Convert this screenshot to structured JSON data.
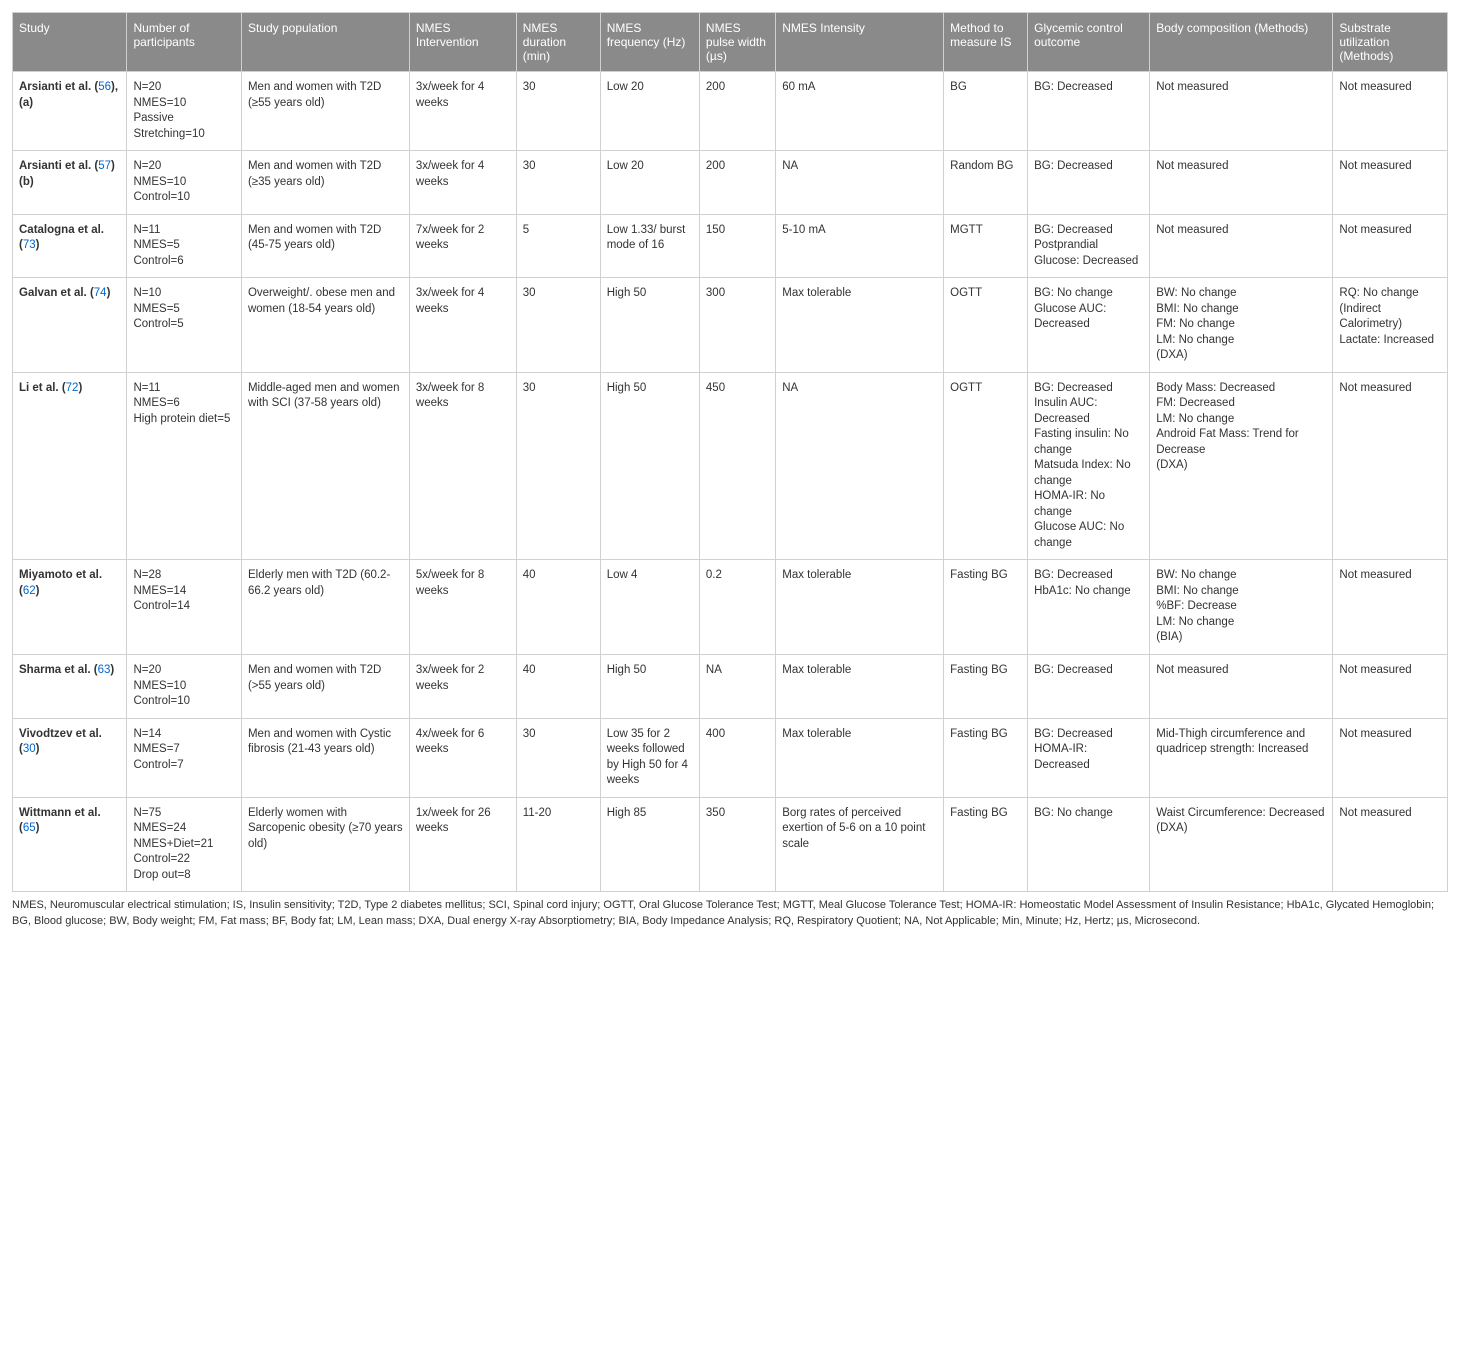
{
  "columns": [
    "Study",
    "Number of participants",
    "Study population",
    "NMES Intervention",
    "NMES duration (min)",
    "NMES frequency (Hz)",
    "NMES pulse width (µs)",
    "NMES Intensity",
    "Method to measure IS",
    "Glycemic control outcome",
    "Body composition (Methods)",
    "Substrate utilization (Methods)"
  ],
  "col_widths_pct": [
    7.5,
    7.5,
    11,
    7,
    5.5,
    6.5,
    5,
    11,
    5.5,
    8,
    12,
    7.5
  ],
  "header_bg": "#8a8a8a",
  "header_fg": "#ffffff",
  "border_color": "#d0d0d0",
  "ref_color": "#0066cc",
  "rows": [
    {
      "study_pre": "Arsianti et al. (",
      "study_ref": "56",
      "study_post": "), (a)",
      "participants": "N=20\nNMES=10\nPassive Stretching=10",
      "population": "Men and women with T2D (≥55 years old)",
      "intervention": "3x/week for 4 weeks",
      "duration": "30",
      "frequency": "Low 20",
      "pulse_width": "200",
      "intensity": "60 mA",
      "method_is": "BG",
      "glycemic": "BG: Decreased",
      "body_comp": "Not measured",
      "substrate": "Not measured"
    },
    {
      "study_pre": "Arsianti et al. (",
      "study_ref": "57",
      "study_post": ") (b)",
      "participants": "N=20\nNMES=10\nControl=10",
      "population": "Men and women with T2D (≥35 years old)",
      "intervention": "3x/week for 4 weeks",
      "duration": "30",
      "frequency": "Low 20",
      "pulse_width": "200",
      "intensity": "NA",
      "method_is": "Random BG",
      "glycemic": "BG: Decreased",
      "body_comp": "Not measured",
      "substrate": "Not measured"
    },
    {
      "study_pre": "Catalogna et al. (",
      "study_ref": "73",
      "study_post": ")",
      "participants": "N=11\nNMES=5\nControl=6",
      "population": "Men and women with T2D (45-75 years old)",
      "intervention": "7x/week for 2 weeks",
      "duration": "5",
      "frequency": "Low 1.33/ burst mode of 16",
      "pulse_width": "150",
      "intensity": "5-10 mA",
      "method_is": "MGTT",
      "glycemic": "BG: Decreased\nPostprandial Glucose: Decreased",
      "body_comp": "Not measured",
      "substrate": "Not measured"
    },
    {
      "study_pre": "Galvan et al. (",
      "study_ref": "74",
      "study_post": ")",
      "participants": "N=10\nNMES=5\nControl=5",
      "population": "Overweight/. obese men and women (18-54 years old)",
      "intervention": "3x/week for 4 weeks",
      "duration": "30",
      "frequency": "High 50",
      "pulse_width": "300",
      "intensity": "Max tolerable",
      "method_is": "OGTT",
      "glycemic": "BG: No change\nGlucose AUC: Decreased",
      "body_comp": "BW: No change\nBMI: No change\nFM: No change\nLM: No change\n(DXA)",
      "substrate": "RQ: No change\n(Indirect Calorimetry)\nLactate: Increased"
    },
    {
      "study_pre": "Li et al. (",
      "study_ref": "72",
      "study_post": ")",
      "participants": "N=11\nNMES=6\nHigh protein diet=5",
      "population": "Middle-aged men and women with SCI (37-58 years old)",
      "intervention": "3x/week for 8 weeks",
      "duration": "30",
      "frequency": "High 50",
      "pulse_width": "450",
      "intensity": "NA",
      "method_is": "OGTT",
      "glycemic": "BG: Decreased\nInsulin AUC: Decreased\nFasting insulin: No change\nMatsuda Index: No change\nHOMA-IR: No change\nGlucose AUC: No change",
      "body_comp": "Body Mass: Decreased\nFM: Decreased\nLM: No change\nAndroid Fat Mass: Trend for Decrease\n(DXA)",
      "substrate": "Not measured"
    },
    {
      "study_pre": "Miyamoto et al. (",
      "study_ref": "62",
      "study_post": ")",
      "participants": "N=28\nNMES=14\nControl=14",
      "population": "Elderly men with T2D (60.2-66.2 years old)",
      "intervention": "5x/week for 8 weeks",
      "duration": "40",
      "frequency": "Low 4",
      "pulse_width": "0.2",
      "intensity": "Max tolerable",
      "method_is": "Fasting BG",
      "glycemic": "BG: Decreased\nHbA1c: No change",
      "body_comp": "BW: No change\nBMI: No change\n%BF: Decrease\nLM: No change\n(BIA)",
      "substrate": "Not measured"
    },
    {
      "study_pre": "Sharma et al. (",
      "study_ref": "63",
      "study_post": ")",
      "participants": "N=20\nNMES=10\nControl=10",
      "population": "Men and women with T2D (>55 years old)",
      "intervention": "3x/week for 2 weeks",
      "duration": "40",
      "frequency": "High 50",
      "pulse_width": "NA",
      "intensity": "Max tolerable",
      "method_is": "Fasting BG",
      "glycemic": "BG: Decreased",
      "body_comp": "Not measured",
      "substrate": "Not measured"
    },
    {
      "study_pre": "Vivodtzev et al. (",
      "study_ref": "30",
      "study_post": ")",
      "participants": "N=14\nNMES=7\nControl=7",
      "population": "Men and women with Cystic fibrosis (21-43 years old)",
      "intervention": "4x/week for 6 weeks",
      "duration": "30",
      "frequency": "Low 35 for 2 weeks followed by High 50 for 4 weeks",
      "pulse_width": "400",
      "intensity": "Max tolerable",
      "method_is": "Fasting BG",
      "glycemic": "BG: Decreased\nHOMA-IR: Decreased",
      "body_comp": "Mid-Thigh circumference and quadricep strength: Increased",
      "substrate": "Not measured"
    },
    {
      "study_pre": "Wittmann et al. (",
      "study_ref": "65",
      "study_post": ")",
      "participants": "N=75\nNMES=24\nNMES+Diet=21\nControl=22\nDrop out=8",
      "population": "Elderly women with Sarcopenic obesity (≥70 years old)",
      "intervention": "1x/week for 26 weeks",
      "duration": "11-20",
      "frequency": "High 85",
      "pulse_width": "350",
      "intensity": "Borg rates of perceived exertion of 5-6 on a 10 point scale",
      "method_is": "Fasting BG",
      "glycemic": "BG: No change",
      "body_comp": "Waist Circumference: Decreased\n(DXA)",
      "substrate": "Not measured"
    }
  ],
  "footnote": "NMES, Neuromuscular electrical stimulation; IS, Insulin sensitivity; T2D, Type 2 diabetes mellitus; SCI, Spinal cord injury; OGTT, Oral Glucose Tolerance Test; MGTT, Meal Glucose Tolerance Test; HOMA-IR: Homeostatic Model Assessment of Insulin Resistance; HbA1c, Glycated Hemoglobin; BG, Blood glucose; BW, Body weight; FM, Fat mass; BF, Body fat; LM, Lean mass; DXA, Dual energy X-ray Absorptiometry; BIA, Body Impedance Analysis; RQ, Respiratory Quotient; NA, Not Applicable; Min, Minute; Hz, Hertz; µs, Microsecond."
}
